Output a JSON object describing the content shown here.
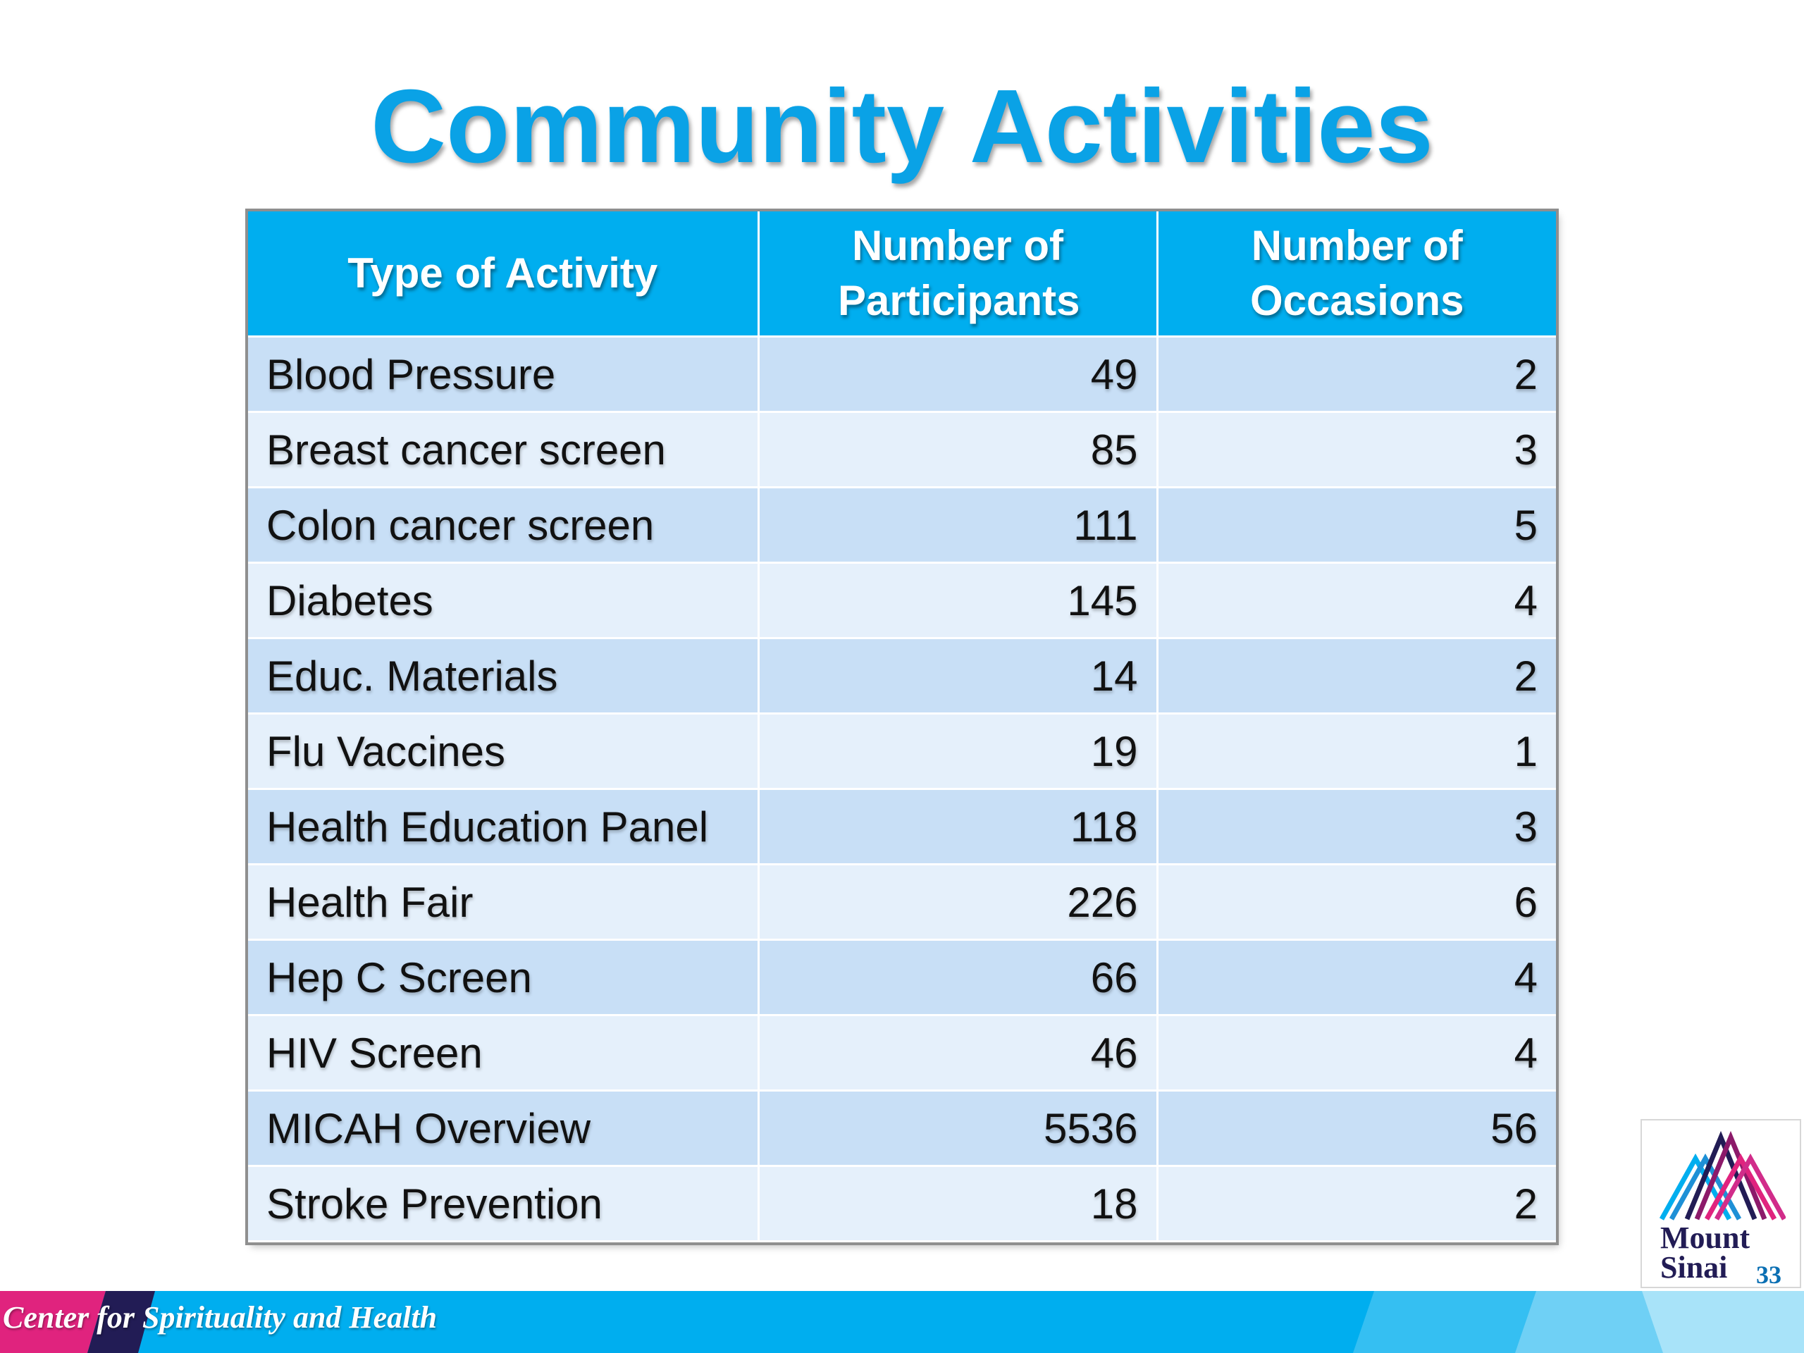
{
  "title": "Community Activities",
  "table": {
    "headers": [
      "Type of Activity",
      "Number of Participants",
      "Number of Occasions"
    ],
    "rows": [
      {
        "activity": "Blood Pressure",
        "participants": "49",
        "occasions": "2"
      },
      {
        "activity": "Breast cancer screen",
        "participants": "85",
        "occasions": "3"
      },
      {
        "activity": "Colon cancer screen",
        "participants": "111",
        "occasions": "5"
      },
      {
        "activity": "Diabetes",
        "participants": "145",
        "occasions": "4"
      },
      {
        "activity": "Educ. Materials",
        "participants": "14",
        "occasions": "2"
      },
      {
        "activity": "Flu Vaccines",
        "participants": "19",
        "occasions": "1"
      },
      {
        "activity": "Health Education Panel",
        "participants": "118",
        "occasions": "3"
      },
      {
        "activity": "Health Fair",
        "participants": "226",
        "occasions": "6"
      },
      {
        "activity": "Hep C Screen",
        "participants": "66",
        "occasions": "4"
      },
      {
        "activity": "HIV Screen",
        "participants": "46",
        "occasions": "4"
      },
      {
        "activity": "MICAH Overview",
        "participants": "5536",
        "occasions": "56"
      },
      {
        "activity": "Stroke Prevention",
        "participants": "18",
        "occasions": "2"
      }
    ]
  },
  "logo": {
    "line1": "Mount",
    "line2": "Sinai"
  },
  "page_number": "33",
  "footer": {
    "text": "Center for Spirituality and Health"
  },
  "colors": {
    "title": "#0aa2e6",
    "header_bg": "#00aeef",
    "row_odd": "#c8dff6",
    "row_even": "#e5f0fb",
    "footer_magenta": "#e0237e",
    "footer_navy": "#221c55",
    "footer_cyan": "#00aeef"
  },
  "icons": {
    "logo_mark": "mount-sinai-peaks-icon"
  }
}
